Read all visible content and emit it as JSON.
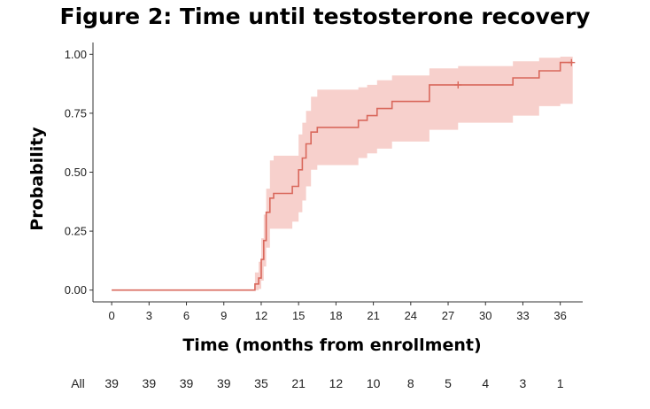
{
  "chart_data": {
    "type": "line",
    "title": "Figure 2: Time until testosterone recovery",
    "xlabel": "Time (months from enrollment)",
    "ylabel": "Probability",
    "xlim": [
      -1.5,
      37.8
    ],
    "ylim": [
      -0.05,
      1.05
    ],
    "x_ticks": [
      0,
      3,
      6,
      9,
      12,
      15,
      18,
      21,
      24,
      27,
      30,
      33,
      36
    ],
    "x_tick_labels": [
      "0",
      "3",
      "6",
      "9",
      "12",
      "15",
      "18",
      "21",
      "24",
      "27",
      "30",
      "33",
      "36"
    ],
    "y_ticks": [
      0,
      0.25,
      0.5,
      0.75,
      1
    ],
    "y_tick_labels": [
      "0.00",
      "0.25",
      "0.50",
      "0.75",
      "1.00"
    ],
    "grid": false,
    "colors": {
      "line": "#d9685c",
      "band": "#f6c8c3",
      "axis": "#333333"
    },
    "series": [
      {
        "type": "step",
        "x": [
          0,
          11.5,
          11.8,
          12.0,
          12.2,
          12.4,
          12.7,
          13.0,
          14.5,
          15.0,
          15.3,
          15.6,
          16.0,
          16.5,
          19.8,
          20.5,
          21.3,
          22.5,
          25.5,
          27.8,
          32.2,
          34.3,
          36.0,
          37.0
        ],
        "y": [
          0,
          0.026,
          0.051,
          0.13,
          0.21,
          0.33,
          0.39,
          0.41,
          0.44,
          0.51,
          0.56,
          0.62,
          0.67,
          0.69,
          0.72,
          0.74,
          0.77,
          0.8,
          0.87,
          0.87,
          0.9,
          0.93,
          0.965,
          0.965
        ],
        "lower": [
          0,
          0,
          0.005,
          0.04,
          0.1,
          0.18,
          0.26,
          0.26,
          0.29,
          0.33,
          0.38,
          0.44,
          0.51,
          0.53,
          0.56,
          0.58,
          0.6,
          0.63,
          0.68,
          0.71,
          0.74,
          0.78,
          0.79,
          0.79
        ],
        "upper": [
          0,
          0.075,
          0.12,
          0.22,
          0.32,
          0.43,
          0.55,
          0.57,
          0.57,
          0.66,
          0.71,
          0.76,
          0.82,
          0.85,
          0.86,
          0.87,
          0.89,
          0.91,
          0.94,
          0.95,
          0.97,
          0.985,
          0.99,
          0.99
        ]
      }
    ],
    "censor_marks": [
      {
        "x": 27.8,
        "y": 0.87
      },
      {
        "x": 36.9,
        "y": 0.965
      }
    ],
    "risk_table": {
      "label": "All",
      "counts": [
        "39",
        "39",
        "39",
        "39",
        "35",
        "21",
        "12",
        "10",
        "8",
        "5",
        "4",
        "3",
        "1"
      ]
    }
  }
}
